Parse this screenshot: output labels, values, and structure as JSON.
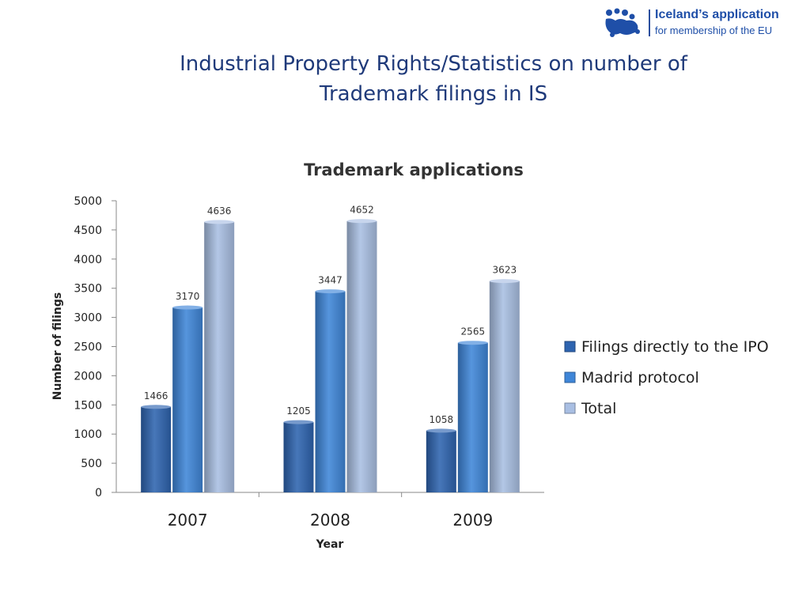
{
  "logo": {
    "line1": "Iceland’s application",
    "line2": "for membership of the EU",
    "icon": "eu-stars-puzzle-logo-icon",
    "color": "#1f4fa8"
  },
  "slide": {
    "title_line1": "Industrial Property Rights/Statistics on number of",
    "title_line2": "Trademark filings in IS",
    "title_color": "#1f3a7a"
  },
  "chart_data": {
    "type": "bar",
    "title": "Trademark applications",
    "xlabel": "Year",
    "ylabel": "Number of filings",
    "categories": [
      "2007",
      "2008",
      "2009"
    ],
    "ylim": [
      0,
      5000
    ],
    "yticks": [
      0,
      500,
      1000,
      1500,
      2000,
      2500,
      3000,
      3500,
      4000,
      4500,
      5000
    ],
    "grid": false,
    "legend_position": "right",
    "series": [
      {
        "name": "Filings directly to the IPO",
        "values": [
          1466,
          1205,
          1058
        ],
        "color": "#2e64b0"
      },
      {
        "name": "Madrid protocol",
        "values": [
          3170,
          3447,
          2565
        ],
        "color": "#3f86d8"
      },
      {
        "name": "Total",
        "values": [
          4636,
          4652,
          3623
        ],
        "color": "#a9bfe3"
      }
    ]
  }
}
